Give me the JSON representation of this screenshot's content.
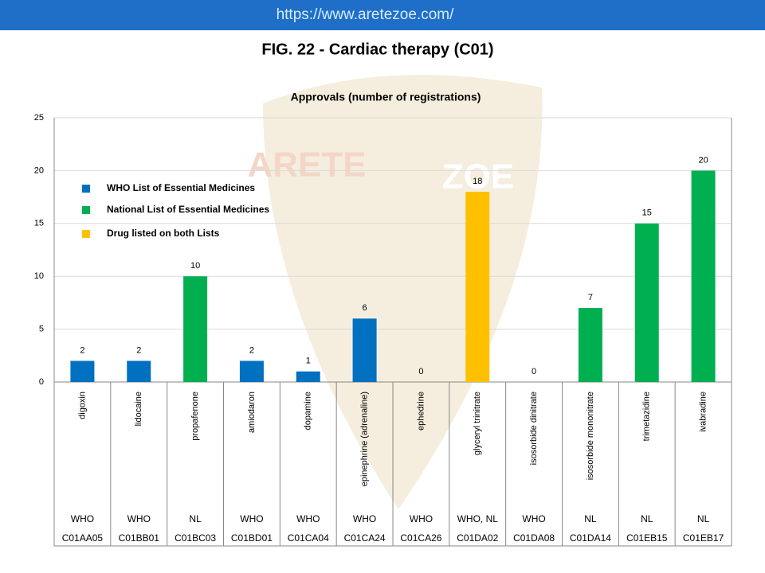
{
  "url": "https://www.aretezoe.com/",
  "watermark": [
    "ARETE",
    "ZOE"
  ],
  "chart_data": {
    "type": "bar",
    "figure_title": "FIG. 22 - Cardiac therapy (C01)",
    "title": "Approvals (number of registrations)",
    "categories": [
      "digoxin",
      "lidocaine",
      "propafenone",
      "amiodaron",
      "dopamine",
      "epinephrine (adrenaline)",
      "ephedrine",
      "glyceryl trinitrate",
      "isosorbide dinitrate",
      "isosorbide mononitrate",
      "trimetazidine",
      "ivabradine"
    ],
    "category_lists": [
      "WHO",
      "WHO",
      "NL",
      "WHO",
      "WHO",
      "WHO",
      "WHO",
      "WHO, NL",
      "WHO",
      "NL",
      "NL",
      "NL"
    ],
    "category_codes": [
      "C01AA05",
      "C01BB01",
      "C01BC03",
      "C01BD01",
      "C01CA04",
      "C01CA24",
      "C01CA26",
      "C01DA02",
      "C01DA08",
      "C01DA14",
      "C01EB15",
      "C01EB17"
    ],
    "values": [
      2,
      2,
      10,
      2,
      1,
      6,
      0,
      18,
      0,
      7,
      15,
      20
    ],
    "colors": [
      "#0070c0",
      "#0070c0",
      "#00b050",
      "#0070c0",
      "#0070c0",
      "#0070c0",
      "#0070c0",
      "#ffc000",
      "#0070c0",
      "#00b050",
      "#00b050",
      "#00b050"
    ],
    "legend": [
      {
        "label": "WHO List of Essential Medicines",
        "color": "#0070c0"
      },
      {
        "label": "National List of Essential Medicines",
        "color": "#00b050"
      },
      {
        "label": "Drug listed on both Lists",
        "color": "#ffc000"
      }
    ],
    "ylim": [
      0,
      25
    ],
    "yticks": [
      0,
      5,
      10,
      15,
      20,
      25
    ],
    "grid": true
  }
}
